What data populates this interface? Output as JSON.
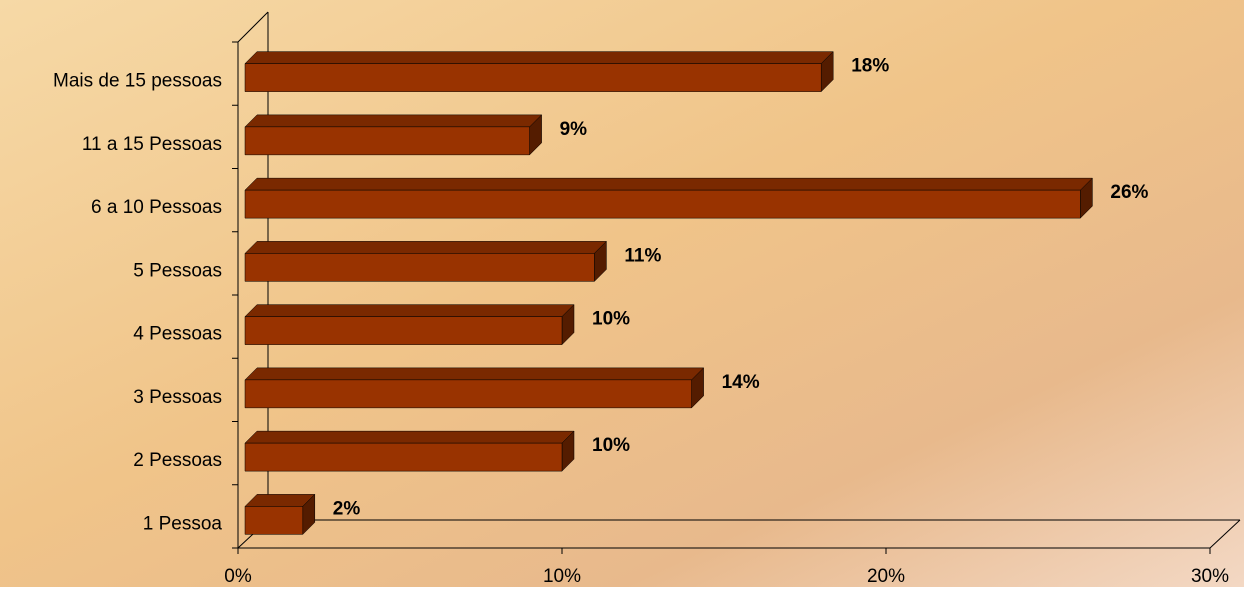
{
  "chart_data": {
    "type": "bar3d_horizontal",
    "categories": [
      "1 Pessoa",
      "2 Pessoas",
      "3 Pessoas",
      "4 Pessoas",
      "5 Pessoas",
      "6 a 10 Pessoas",
      "11 a 15 Pessoas",
      "Mais de 15 pessoas"
    ],
    "values": [
      2,
      10,
      14,
      10,
      11,
      26,
      9,
      18
    ],
    "value_labels": [
      "2%",
      "10%",
      "14%",
      "10%",
      "11%",
      "26%",
      "9%",
      "18%"
    ],
    "color": "#993300",
    "xlim": [
      0,
      30
    ],
    "xticks": [
      {
        "value": 0,
        "label": "0%"
      },
      {
        "value": 10,
        "label": "10%"
      },
      {
        "value": 20,
        "label": "20%"
      },
      {
        "value": 30,
        "label": "30%"
      }
    ]
  }
}
